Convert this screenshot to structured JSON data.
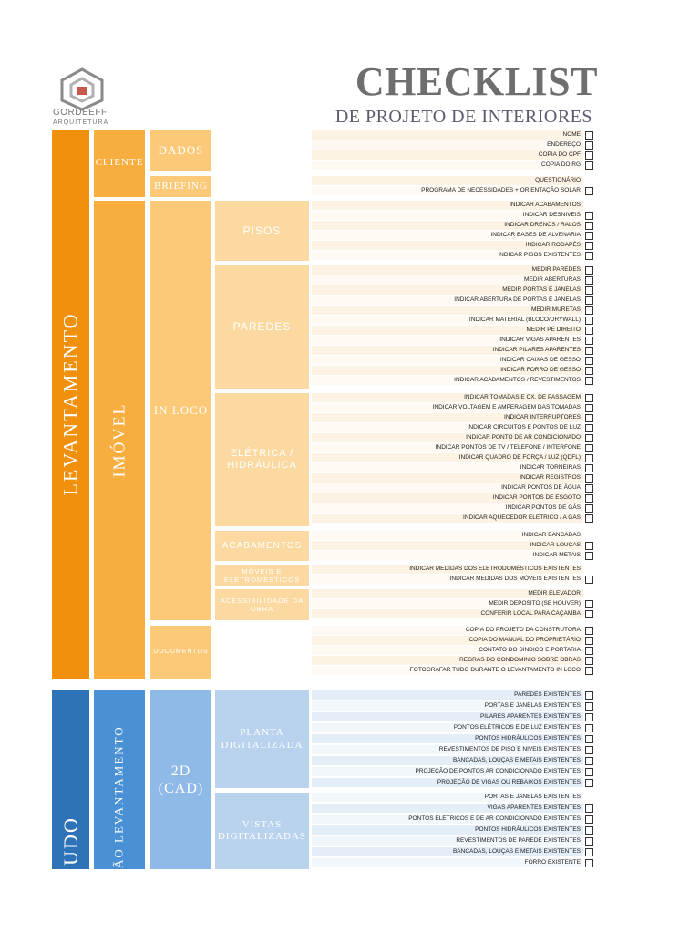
{
  "header": {
    "brand_name": "GORDEEFF",
    "brand_sub": "ARQUITETURA",
    "title": "CHECKLIST",
    "subtitle": "DE PROJETO DE INTERIORES"
  },
  "colors": {
    "orange_dark": "#f0900c",
    "orange_mid": "#f8ae3e",
    "orange_light": "#fbc978",
    "orange_pale": "#fcd9a0",
    "blue_dark": "#2e72b8",
    "blue_mid": "#4a90d4",
    "blue_light": "#8fb9e6",
    "blue_pale": "#b9d3ef"
  },
  "labels": {
    "levantamento": "LEVANTAMENTO",
    "cliente": "CLIENTE",
    "dados": "DADOS",
    "briefing": "BRIEFING",
    "imovel": "IMÓVEL",
    "in_loco": "IN LOCO",
    "pisos": "PISOS",
    "paredes": "PAREDES",
    "eletrica": "ELÉTRICA / HIDRÁULICA",
    "acabamentos": "ACABAMENTOS",
    "moveis": "MÓVEIS E ELETROMÉSTICOS",
    "acessibilidade": "ACESSIBILIDADE DA OBRA",
    "documentos": "DOCUMENTOS",
    "estudo": "UDO",
    "restituicao": "ÇÃO LEVANTAMENTO",
    "cad": "2D (CAD)",
    "planta": "PLANTA DIGITALIZADA",
    "vistas": "VISTAS DIGITALIZADAS"
  },
  "items": [
    {
      "text": "NOME",
      "check": true
    },
    {
      "text": "ENDEREÇO",
      "check": true
    },
    {
      "text": "COPIA DO CPF",
      "check": true
    },
    {
      "text": "COPIA DO RG",
      "check": true
    },
    {
      "text": "QUESTIONÁRIO",
      "check": false
    },
    {
      "text": "PROGRAMA DE NECESSIDADES + ORIENTAÇÃO SOLAR",
      "check": true
    },
    {
      "text": "INDICAR ACABAMENTOS",
      "check": false
    },
    {
      "text": "INDICAR DESNIVEIS",
      "check": true
    },
    {
      "text": "INDICAR DRENOS / RALOS",
      "check": true
    },
    {
      "text": "INDICAR BASES DE ALVENARIA",
      "check": true
    },
    {
      "text": "INDICAR RODAPÉS",
      "check": true
    },
    {
      "text": "INDICAR PISOS EXISTENTES",
      "check": true
    },
    {
      "text": "MEDIR PAREDES",
      "check": true
    },
    {
      "text": "MEDIR ABERTURAS",
      "check": true
    },
    {
      "text": "MEDIR PORTAS E JANELAS",
      "check": true
    },
    {
      "text": "INDICAR ABERTURA DE PORTAS E JANELAS",
      "check": true
    },
    {
      "text": "MEDIR MURETAS",
      "check": true
    },
    {
      "text": "INDICAR MATERIAL (BLOCO/DRYWALL)",
      "check": true
    },
    {
      "text": "MEDIR PÉ DIREITO",
      "check": true
    },
    {
      "text": "INDICAR VIGAS APARENTES",
      "check": true
    },
    {
      "text": "INDICAR PILARES APARENTES",
      "check": true
    },
    {
      "text": "INDICAR CAIXAS DE GESSO",
      "check": true
    },
    {
      "text": "INDICAR FORRO DE GESSO",
      "check": true
    },
    {
      "text": "INDICAR ACABAMENTOS / REVESTIMENTOS",
      "check": true
    },
    {
      "text": "INDICAR TOMADAS E CX. DE PASSAGEM",
      "check": true
    },
    {
      "text": "INDICAR VOLTAGEM E AMPERAGEM DAS TOMADAS",
      "check": true
    },
    {
      "text": "INDICAR INTERRUPTORES",
      "check": true
    },
    {
      "text": "INDICAR CIRCUITOS E PONTOS DE LUZ",
      "check": true
    },
    {
      "text": "INDICAR PONTO DE AR CONDICIONADO",
      "check": true
    },
    {
      "text": "INDICAR PONTOS DE TV / TELEFONE / INTERFONE",
      "check": true
    },
    {
      "text": "INDICAR QUADRO DE FORÇA / LUZ (QDFL)",
      "check": true
    },
    {
      "text": "INDICAR TORNEIRAS",
      "check": true
    },
    {
      "text": "INDICAR REGISTROS",
      "check": true
    },
    {
      "text": "INDICAR PONTOS DE ÁGUA",
      "check": true
    },
    {
      "text": "INDICAR PONTOS DE ESGOTO",
      "check": true
    },
    {
      "text": "INDICAR PONTOS DE GÁS",
      "check": true
    },
    {
      "text": "INDICAR AQUECEDOR ELETRICO / A GÁS",
      "check": true
    },
    {
      "text": "INDICAR BANCADAS",
      "check": false
    },
    {
      "text": "INDICAR LOUÇAS",
      "check": true
    },
    {
      "text": "INDICAR METAIS",
      "check": true
    },
    {
      "text": "INDICAR MEDIDAS DOS ELETRODOMÉSTICOS EXISTENTES",
      "check": false
    },
    {
      "text": "INDICAR MEDIDAS DOS MÓVEIS EXISTENTES",
      "check": true
    },
    {
      "text": "MEDIR ELEVADOR",
      "check": false
    },
    {
      "text": "MEDIR DEPOSITO (SE HOUVER)",
      "check": true
    },
    {
      "text": "CONFERIR LOCAL PARA CAÇAMBA",
      "check": true
    },
    {
      "text": "COPIA DO PROJETO DA CONSTRUTORA",
      "check": true
    },
    {
      "text": "COPIA DO MANUAL DO PROPRIETÁRIO",
      "check": true
    },
    {
      "text": "CONTATO DO SINDICO E PORTARIA",
      "check": true
    },
    {
      "text": "REGRAS DO CONDOMINIO SOBRE OBRAS",
      "check": true
    },
    {
      "text": "FOTOGRAFAR TUDO DURANTE O LEVANTAMENTO IN LOCO",
      "check": true
    },
    {
      "text": "PAREDES EXISTENTES",
      "check": true
    },
    {
      "text": "PORTAS E JANELAS EXISTENTES",
      "check": true
    },
    {
      "text": "PILARES APARENTES EXISTENTES",
      "check": true
    },
    {
      "text": "PONTOS ELÉTRICOS E DE LUZ EXISTENTES",
      "check": true
    },
    {
      "text": "PONTOS HIDRÁULICOS EXISTENTES",
      "check": true
    },
    {
      "text": "REVESTIMENTOS DE PISO E NIVEIS EXISTENTES",
      "check": true
    },
    {
      "text": "BANCADAS, LOUÇAS E METAIS EXISTENTES",
      "check": true
    },
    {
      "text": "PROJEÇÃO DE PONTOS AR CONDICIONADO EXISTENTES",
      "check": true
    },
    {
      "text": "PROJEÇÃO DE VIGAS OU REBAIXOS EXISTENTES",
      "check": true
    },
    {
      "text": "PORTAS E JANELAS EXISTENTES",
      "check": false
    },
    {
      "text": "VIGAS APARENTES EXISTENTES",
      "check": true
    },
    {
      "text": "PONTOS ELETRICOS E DE AR CONDICIONADO EXISTENTES",
      "check": true
    },
    {
      "text": "PONTOS HIDRÁULICOS EXISTENTES",
      "check": true
    },
    {
      "text": "REVESTIMENTOS DE PAREDE EXISTENTES",
      "check": true
    },
    {
      "text": "BANCADAS, LOUÇAS E METAIS EXISTENTES",
      "check": true
    },
    {
      "text": "FORRO EXISTENTE",
      "check": true
    }
  ]
}
